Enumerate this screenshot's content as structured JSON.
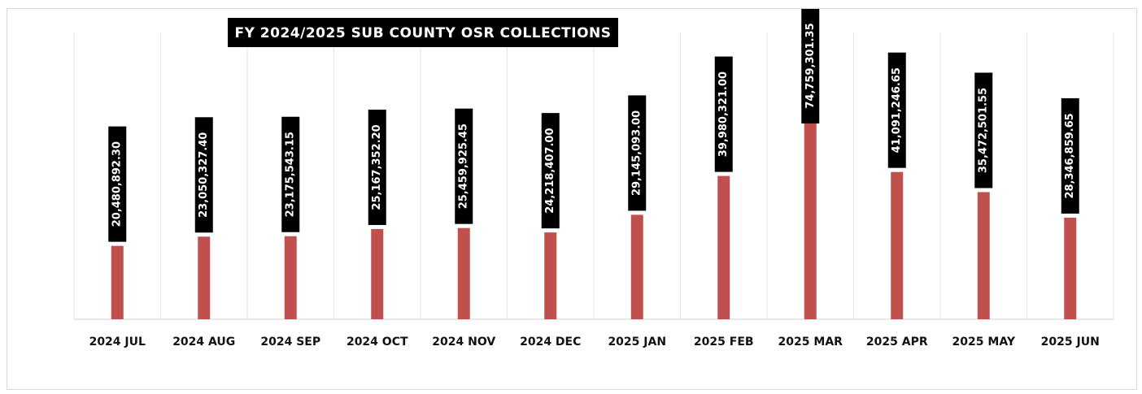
{
  "chart_data": {
    "type": "bar",
    "title": "FY 2024/2025 SUB COUNTY OSR COLLECTIONS",
    "categories": [
      "2024 JUL",
      "2024 AUG",
      "2024 SEP",
      "2024 OCT",
      "2024 NOV",
      "2024 DEC",
      "2025 JAN",
      "2025 FEB",
      "2025 MAR",
      "2025 APR",
      "2025 MAY",
      "2025 JUN"
    ],
    "values": [
      20480892.3,
      23050327.4,
      23175543.15,
      25167352.2,
      25459925.45,
      24218407.0,
      29145093.0,
      39980321.0,
      74759301.35,
      41091246.65,
      35472501.55,
      28346859.65
    ],
    "value_labels": [
      "20,480,892.30",
      "23,050,327.40",
      "23,175,543.15",
      "25,167,352.20",
      "25,459,925.45",
      "24,218,407.00",
      "29,145,093.00",
      "39,980,321.00",
      "74,759,301.35",
      "41,091,246.65",
      "35,472,501.55",
      "28,346,859.65"
    ],
    "color": "#c0504d",
    "ylim": [
      0,
      80000000
    ]
  }
}
